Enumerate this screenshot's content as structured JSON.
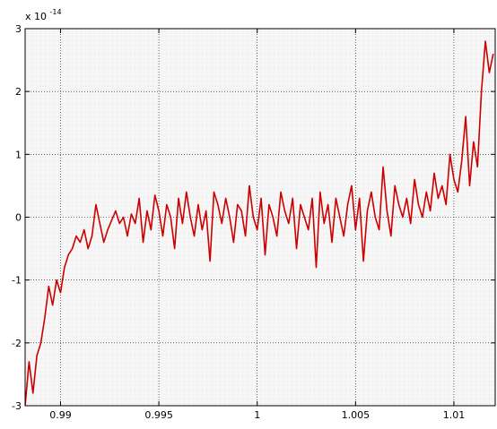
{
  "chart_data": {
    "type": "line",
    "title": "",
    "xlabel": "",
    "ylabel": "",
    "xlim": [
      0.9882,
      1.0121
    ],
    "ylim": [
      -3,
      3
    ],
    "y_exponent_label": "x 10",
    "y_exponent_power": "-14",
    "x_ticks": [
      {
        "value": 0.99,
        "label": "0.99"
      },
      {
        "value": 0.995,
        "label": "0.995"
      },
      {
        "value": 1.0,
        "label": "1"
      },
      {
        "value": 1.005,
        "label": "1.005"
      },
      {
        "value": 1.01,
        "label": "1.01"
      }
    ],
    "y_ticks": [
      {
        "value": -3,
        "label": "-3"
      },
      {
        "value": -2,
        "label": "-2"
      },
      {
        "value": -1,
        "label": "-1"
      },
      {
        "value": 0,
        "label": "0"
      },
      {
        "value": 1,
        "label": "1"
      },
      {
        "value": 2,
        "label": "2"
      },
      {
        "value": 3,
        "label": "3"
      }
    ],
    "grid": true,
    "line_color": "#cc0000",
    "series": [
      {
        "x": [
          0.9882,
          0.9884,
          0.9886,
          0.9888,
          0.989,
          0.9892,
          0.9894,
          0.9896,
          0.9898,
          0.99,
          0.9902,
          0.9904,
          0.9906,
          0.9908,
          0.991,
          0.9912,
          0.9914,
          0.9916,
          0.9918,
          0.992,
          0.9922,
          0.9924,
          0.9926,
          0.9928,
          0.993,
          0.9932,
          0.9934,
          0.9936,
          0.9938,
          0.994,
          0.9942,
          0.9944,
          0.9946,
          0.9948,
          0.995,
          0.9952,
          0.9954,
          0.9956,
          0.9958,
          0.996,
          0.9962,
          0.9964,
          0.9966,
          0.9968,
          0.997,
          0.9972,
          0.9974,
          0.9976,
          0.9978,
          0.998,
          0.9982,
          0.9984,
          0.9986,
          0.9988,
          0.999,
          0.9992,
          0.9994,
          0.9996,
          0.9998,
          1.0,
          1.0002,
          1.0004,
          1.0006,
          1.0008,
          1.001,
          1.0012,
          1.0014,
          1.0016,
          1.0018,
          1.002,
          1.0022,
          1.0024,
          1.0026,
          1.0028,
          1.003,
          1.0032,
          1.0034,
          1.0036,
          1.0038,
          1.004,
          1.0042,
          1.0044,
          1.0046,
          1.0048,
          1.005,
          1.0052,
          1.0054,
          1.0056,
          1.0058,
          1.006,
          1.0062,
          1.0064,
          1.0066,
          1.0068,
          1.007,
          1.0072,
          1.0074,
          1.0076,
          1.0078,
          1.008,
          1.0082,
          1.0084,
          1.0086,
          1.0088,
          1.009,
          1.0092,
          1.0094,
          1.0096,
          1.0098,
          1.01,
          1.0102,
          1.0104,
          1.0106,
          1.0108,
          1.011,
          1.0112,
          1.0114,
          1.0116,
          1.0118,
          1.012
        ],
        "y": [
          -3.0,
          -2.3,
          -2.8,
          -2.2,
          -2.0,
          -1.6,
          -1.1,
          -1.4,
          -1.0,
          -1.2,
          -0.8,
          -0.6,
          -0.5,
          -0.3,
          -0.4,
          -0.2,
          -0.5,
          -0.3,
          0.2,
          -0.1,
          -0.4,
          -0.2,
          -0.05,
          0.1,
          -0.1,
          0.0,
          -0.3,
          0.05,
          -0.1,
          0.3,
          -0.4,
          0.1,
          -0.2,
          0.35,
          0.1,
          -0.3,
          0.2,
          0.0,
          -0.5,
          0.3,
          -0.1,
          0.4,
          0.0,
          -0.3,
          0.2,
          -0.2,
          0.1,
          -0.7,
          0.4,
          0.2,
          -0.1,
          0.3,
          0.0,
          -0.4,
          0.2,
          0.1,
          -0.3,
          0.5,
          0.0,
          -0.2,
          0.3,
          -0.6,
          0.2,
          0.0,
          -0.3,
          0.4,
          0.1,
          -0.1,
          0.3,
          -0.5,
          0.2,
          0.0,
          -0.2,
          0.3,
          -0.8,
          0.4,
          -0.1,
          0.2,
          -0.4,
          0.3,
          0.0,
          -0.3,
          0.2,
          0.5,
          -0.2,
          0.3,
          -0.7,
          0.1,
          0.4,
          0.0,
          -0.2,
          0.8,
          0.1,
          -0.3,
          0.5,
          0.2,
          0.0,
          0.3,
          -0.1,
          0.6,
          0.2,
          0.0,
          0.4,
          0.1,
          0.7,
          0.3,
          0.5,
          0.2,
          1.0,
          0.6,
          0.4,
          0.9,
          1.6,
          0.5,
          1.2,
          0.8,
          2.0,
          2.8,
          2.3,
          2.6
        ]
      }
    ]
  }
}
